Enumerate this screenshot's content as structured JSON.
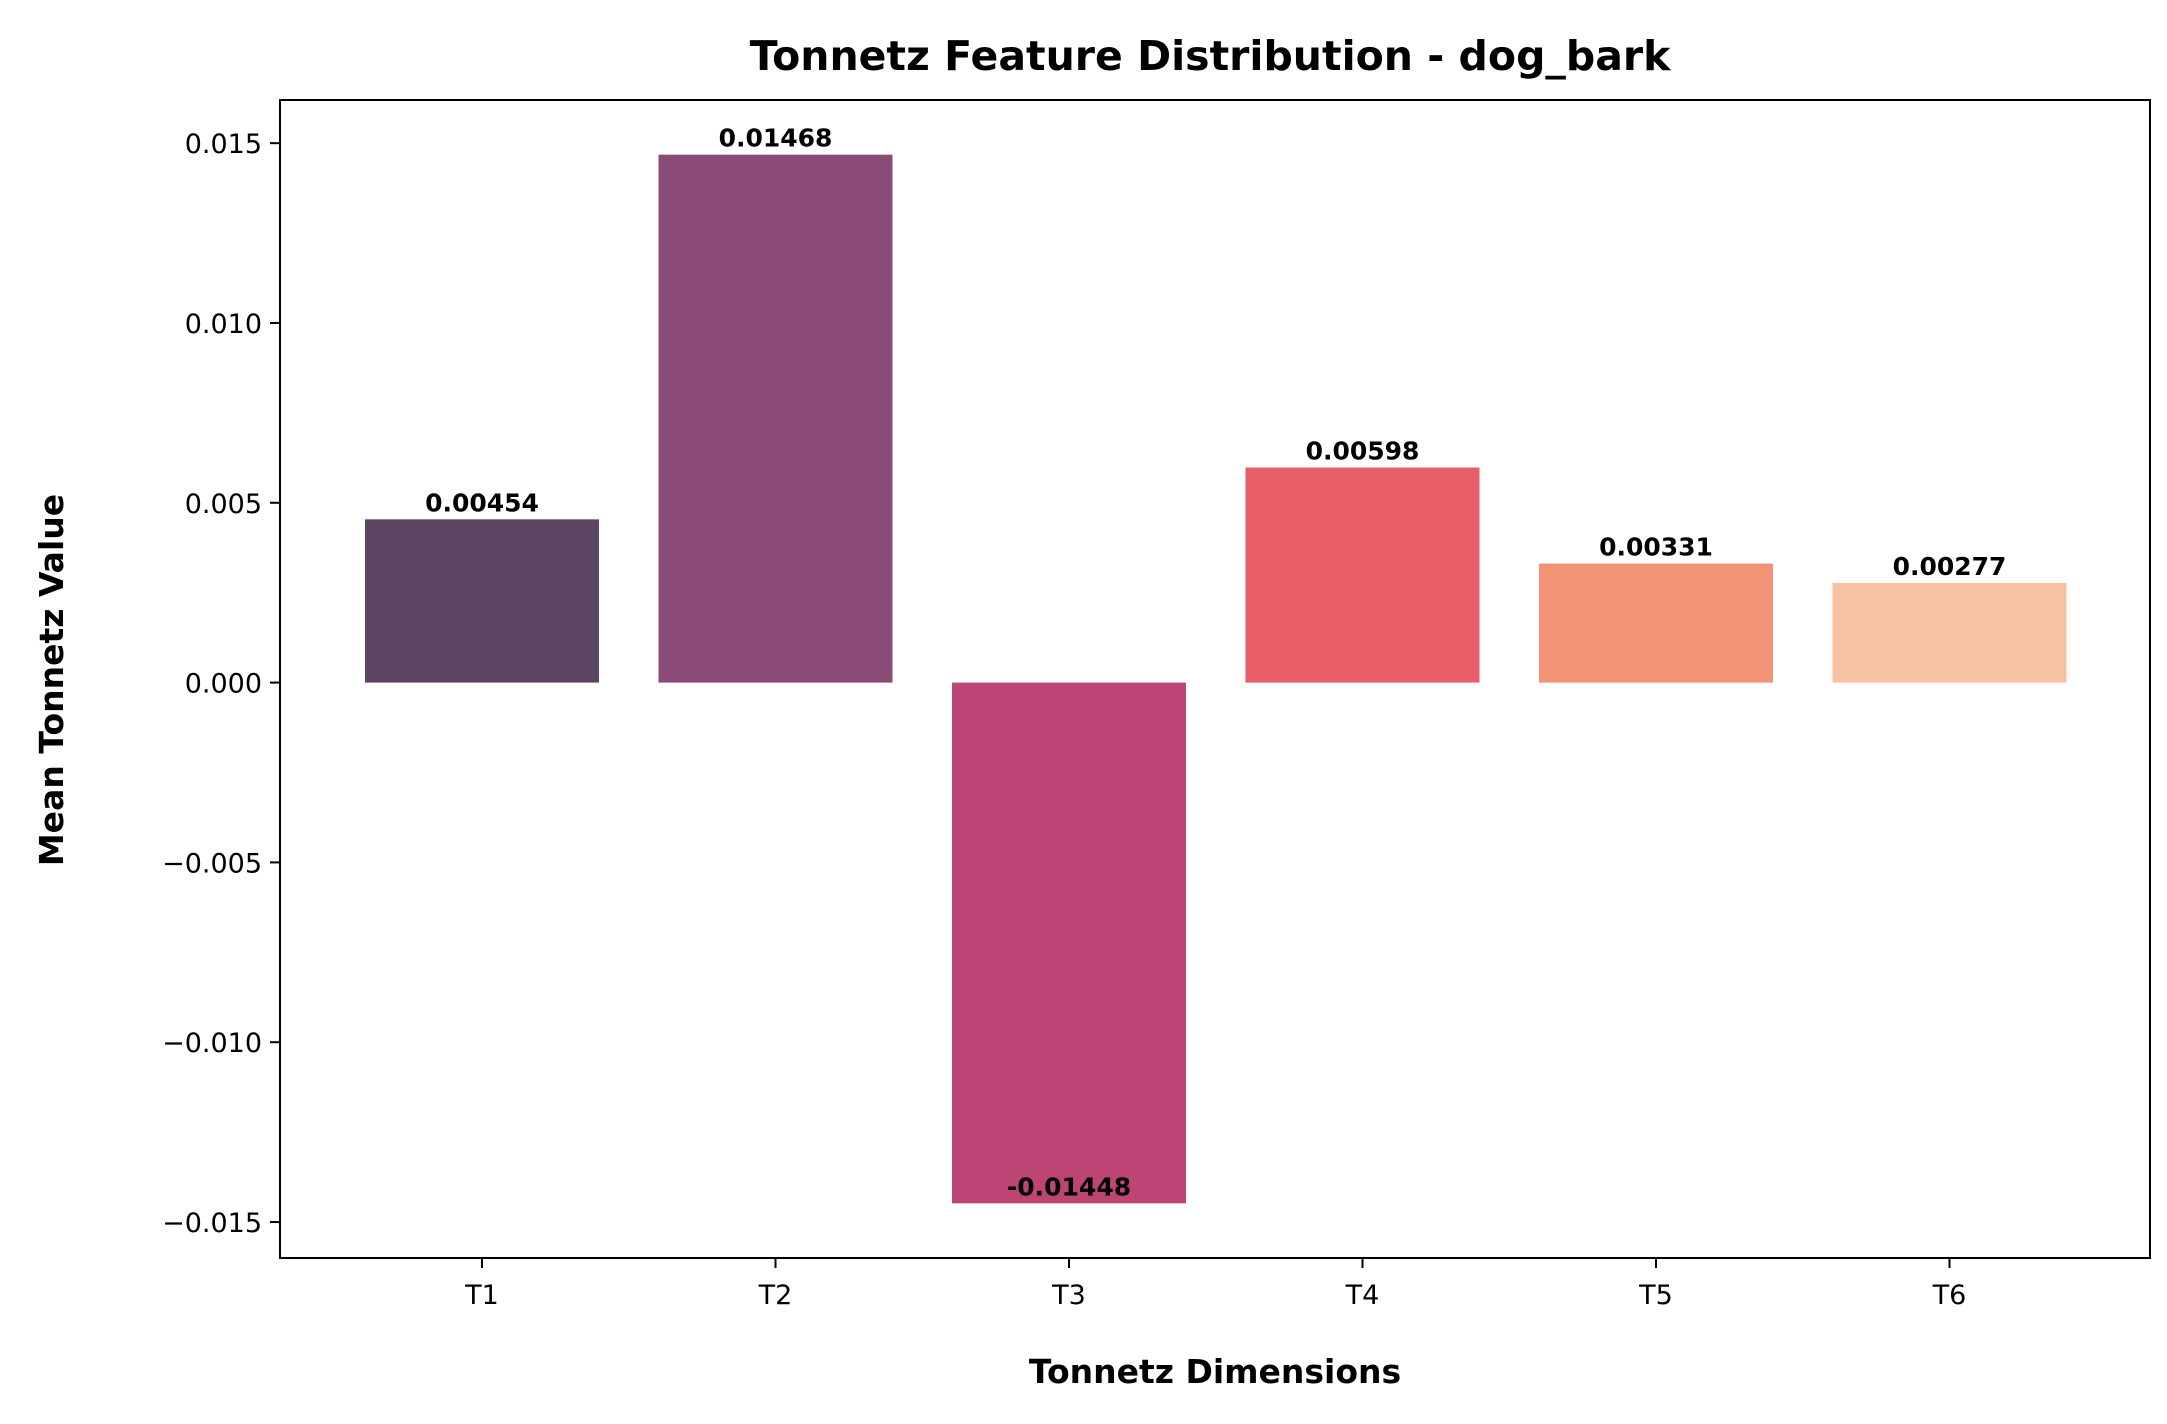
{
  "chart_data": {
    "type": "bar",
    "title": "Tonnetz Feature Distribution - dog_bark",
    "xlabel": "Tonnetz Dimensions",
    "ylabel": "Mean Tonnetz Value",
    "categories": [
      "T1",
      "T2",
      "T3",
      "T4",
      "T5",
      "T6"
    ],
    "values": [
      0.00454,
      0.01468,
      -0.01448,
      0.00598,
      0.00331,
      0.00277
    ],
    "value_labels": [
      "0.00454",
      "0.01468",
      "-0.01448",
      "0.00598",
      "0.00331",
      "0.00277"
    ],
    "colors": [
      "#5c4562",
      "#894b75",
      "#bc4575",
      "#e75e68",
      "#f39376",
      "#f6c2a4"
    ],
    "ylim": [
      -0.016,
      0.0162
    ],
    "yticks": [
      -0.015,
      -0.01,
      -0.005,
      0.0,
      0.005,
      0.01,
      0.015
    ],
    "ytick_labels": [
      "−0.015",
      "−0.010",
      "−0.005",
      "0.000",
      "0.005",
      "0.010",
      "0.015"
    ],
    "grid": false,
    "legend": "none"
  }
}
